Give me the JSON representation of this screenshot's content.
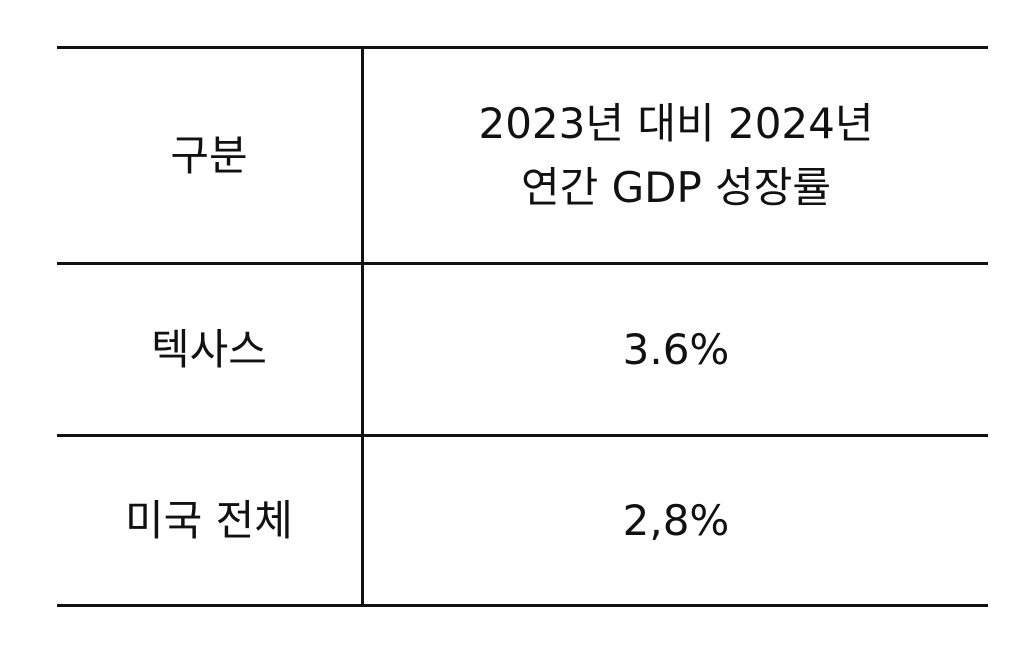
{
  "table": {
    "header": [
      [
        "구분"
      ],
      [
        "2023년 대비 2024년",
        "연간 GDP 성장률"
      ]
    ],
    "rows": [
      [
        "텍사스",
        "3.6%"
      ],
      [
        "미국 전체",
        "2,8%"
      ]
    ]
  }
}
